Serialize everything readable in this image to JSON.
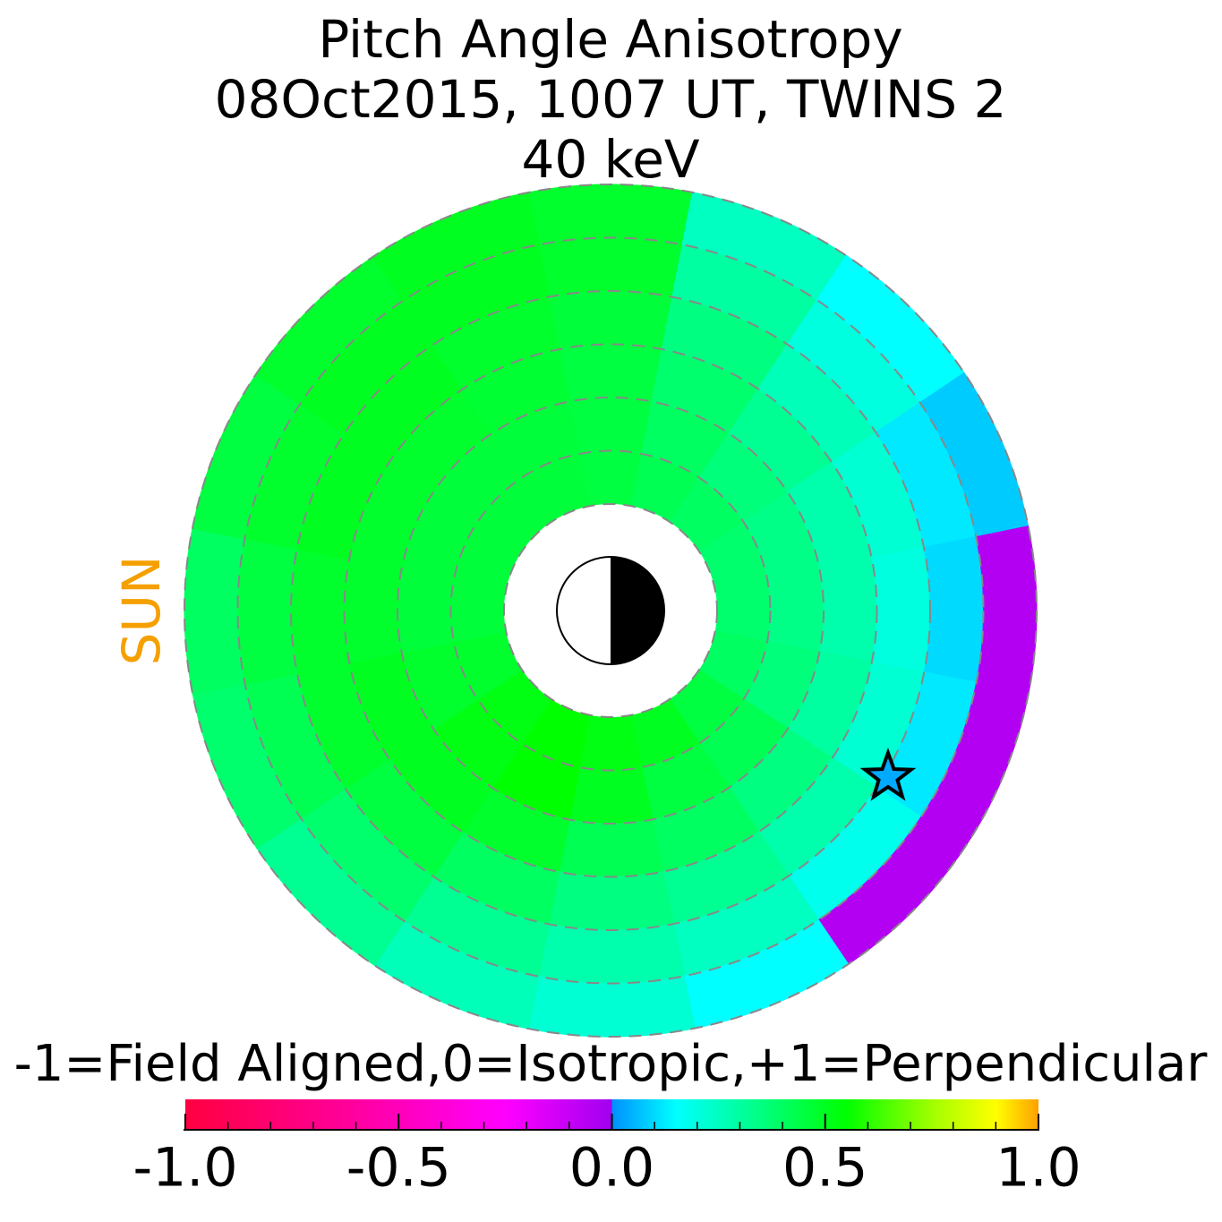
{
  "chart_data": {
    "type": "polar_map",
    "title": [
      "Pitch Angle Anisotropy",
      "08Oct2015, 1007 UT,  TWINS 2",
      "40 keV"
    ],
    "sun_label": "SUN",
    "values": [
      [
        0.45,
        0.42,
        0.4,
        0.38,
        0.38,
        0.4,
        0.45,
        0.5,
        0.52,
        0.55,
        0.52,
        0.48,
        0.46,
        0.46,
        0.46,
        0.46
      ],
      [
        0.45,
        0.4,
        0.36,
        0.34,
        0.34,
        0.36,
        0.42,
        0.45,
        0.5,
        0.55,
        0.52,
        0.48,
        0.46,
        0.46,
        0.46,
        0.46
      ],
      [
        0.45,
        0.38,
        0.32,
        0.28,
        0.28,
        0.3,
        0.35,
        0.4,
        0.42,
        0.48,
        0.5,
        0.5,
        0.48,
        0.48,
        0.48,
        0.47
      ],
      [
        0.46,
        0.35,
        0.26,
        0.22,
        0.2,
        0.22,
        0.28,
        0.32,
        0.35,
        0.4,
        0.45,
        0.48,
        0.48,
        0.5,
        0.5,
        0.48
      ],
      [
        0.48,
        0.3,
        0.2,
        0.12,
        0.1,
        0.12,
        0.18,
        0.25,
        0.28,
        0.32,
        0.38,
        0.42,
        0.45,
        0.48,
        0.5,
        0.5
      ],
      [
        0.48,
        0.25,
        0.15,
        0.08,
        -0.05,
        -0.05,
        -0.05,
        0.15,
        0.22,
        0.26,
        0.32,
        0.38,
        0.4,
        0.45,
        0.48,
        0.5
      ]
    ],
    "colorbar": {
      "label": "-1=Field Aligned,0=Isotropic,+1=Perpendicular",
      "lim": [
        -1,
        1
      ],
      "ticks": [
        {
          "value": -1,
          "label": "-1.0"
        },
        {
          "value": -0.5,
          "label": "-0.5"
        },
        {
          "value": 0,
          "label": "0.0"
        },
        {
          "value": 0.5,
          "label": "0.5"
        },
        {
          "value": 1,
          "label": "1.0"
        }
      ],
      "minor_ticks": [
        -0.9,
        -0.8,
        -0.7,
        -0.6,
        -0.4,
        -0.3,
        -0.2,
        -0.1,
        0.1,
        0.2,
        0.3,
        0.4,
        0.6,
        0.7,
        0.8,
        0.9
      ],
      "colormap": [
        {
          "value": -1,
          "color": "#ff0040"
        },
        {
          "value": -0.6,
          "color": "#ff00a0"
        },
        {
          "value": -0.25,
          "color": "#ff00ff"
        },
        {
          "value": 0,
          "color": "#a000f0"
        },
        {
          "value": 0,
          "color": "#0090ff"
        },
        {
          "value": 0.15,
          "color": "#00ffff"
        },
        {
          "value": 0.3,
          "color": "#00ffa0"
        },
        {
          "value": 0.55,
          "color": "#00ff00"
        },
        {
          "value": 0.75,
          "color": "#a0ff00"
        },
        {
          "value": 0.9,
          "color": "#ffff00"
        },
        {
          "value": 1,
          "color": "#ffa000"
        }
      ]
    }
  }
}
